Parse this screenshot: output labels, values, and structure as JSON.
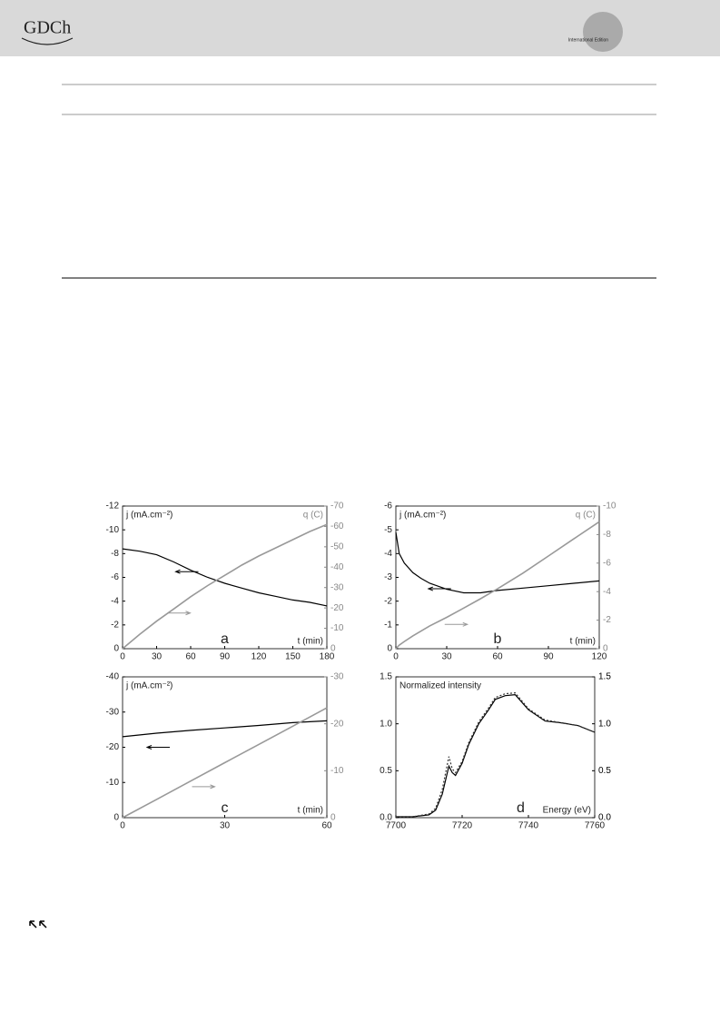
{
  "header": {
    "logo": "GDCh",
    "edition": "International Edition"
  },
  "chart_data": [
    {
      "type": "line",
      "panel_label": "a",
      "y_label": "j (mA.cm⁻²)",
      "y2_label": "q (C)",
      "x_label": "t (min)",
      "x": [
        0,
        15,
        30,
        45,
        60,
        75,
        90,
        105,
        120,
        135,
        150,
        165,
        180
      ],
      "xlim": [
        0,
        180
      ],
      "xticks": [
        0,
        30,
        60,
        90,
        120,
        150,
        180
      ],
      "ylim": [
        0,
        -12
      ],
      "yticks": [
        0,
        -2,
        -4,
        -6,
        -8,
        -10,
        -12
      ],
      "y2lim": [
        0,
        -70
      ],
      "y2ticks": [
        0,
        -10,
        -20,
        -30,
        -40,
        -50,
        -60,
        -70
      ],
      "series": [
        {
          "color": "#000000",
          "values": [
            -8.4,
            -8.2,
            -7.9,
            -7.3,
            -6.6,
            -6.0,
            -5.5,
            -5.1,
            -4.7,
            -4.4,
            -4.1,
            -3.9,
            -3.6
          ]
        },
        {
          "color": "#999999",
          "axis": "y2",
          "values": [
            0,
            -7,
            -13.5,
            -19.5,
            -25.5,
            -31,
            -36,
            -41,
            -45.5,
            -49.5,
            -53.5,
            -57.5,
            -61
          ]
        }
      ]
    },
    {
      "type": "line",
      "panel_label": "b",
      "y_label": "j (mA.cm⁻²)",
      "y2_label": "q (C)",
      "x_label": "t (min)",
      "x": [
        0,
        2,
        5,
        10,
        15,
        20,
        30,
        40,
        50,
        60,
        75,
        90,
        105,
        120
      ],
      "xlim": [
        0,
        120
      ],
      "xticks": [
        0,
        30,
        60,
        90,
        120
      ],
      "ylim": [
        0,
        -6
      ],
      "yticks": [
        0,
        -1,
        -2,
        -3,
        -4,
        -5,
        -6
      ],
      "y2lim": [
        0,
        -10
      ],
      "y2ticks": [
        0,
        -2,
        -4,
        -6,
        -8,
        -10
      ],
      "series": [
        {
          "color": "#000000",
          "values": [
            -4.9,
            -4.0,
            -3.6,
            -3.2,
            -2.95,
            -2.75,
            -2.5,
            -2.35,
            -2.35,
            -2.45,
            -2.55,
            -2.65,
            -2.75,
            -2.85
          ]
        },
        {
          "color": "#999999",
          "axis": "y2",
          "values": [
            0,
            -0.25,
            -0.5,
            -0.9,
            -1.25,
            -1.6,
            -2.2,
            -2.85,
            -3.5,
            -4.2,
            -5.3,
            -6.5,
            -7.7,
            -8.9
          ]
        }
      ]
    },
    {
      "type": "line",
      "panel_label": "c",
      "y_label": "j (mA.cm⁻²)",
      "x_label": "t (min)",
      "x": [
        0,
        10,
        20,
        30,
        40,
        50,
        60
      ],
      "xlim": [
        0,
        60
      ],
      "xticks": [
        0,
        30,
        60
      ],
      "ylim": [
        0,
        -40
      ],
      "yticks": [
        0,
        -10,
        -20,
        -30,
        -40
      ],
      "y2lim": [
        0,
        -30
      ],
      "y2ticks": [
        0,
        -10,
        -20,
        -30
      ],
      "series": [
        {
          "color": "#000000",
          "values": [
            -23,
            -24,
            -24.8,
            -25.5,
            -26.2,
            -27,
            -27.5
          ]
        },
        {
          "color": "#999999",
          "axis": "y2",
          "values": [
            0,
            -3.9,
            -7.8,
            -11.7,
            -15.6,
            -19.5,
            -23.4
          ]
        }
      ]
    },
    {
      "type": "line",
      "panel_label": "d",
      "y_label": "Normalized intensity",
      "x_label": "Energy (eV)",
      "x": [
        7700,
        7705,
        7710,
        7712,
        7714,
        7716,
        7717,
        7718,
        7720,
        7722,
        7725,
        7728,
        7730,
        7733,
        7736,
        7740,
        7745,
        7750,
        7755,
        7760
      ],
      "xlim": [
        7700,
        7760
      ],
      "xticks": [
        7700,
        7720,
        7740,
        7760
      ],
      "ylim": [
        0,
        1.5
      ],
      "yticks": [
        {
          "value": 0,
          "label": "0.0"
        },
        0.5,
        {
          "value": 1,
          "label": "1.0"
        },
        1.5
      ],
      "y2lim": [
        0,
        1.5
      ],
      "y2ticks": [
        {
          "value": 0,
          "label": "0.0"
        },
        0.5,
        {
          "value": 1,
          "label": "1.0"
        },
        1.5
      ],
      "series": [
        {
          "color": "#000000",
          "values": [
            0.01,
            0.01,
            0.03,
            0.08,
            0.25,
            0.55,
            0.48,
            0.45,
            0.58,
            0.78,
            1.0,
            1.15,
            1.26,
            1.3,
            1.31,
            1.15,
            1.03,
            1.01,
            0.98,
            0.91
          ]
        },
        {
          "color": "#333333",
          "dashed": true,
          "values": [
            0.01,
            0.01,
            0.04,
            0.1,
            0.3,
            0.65,
            0.52,
            0.48,
            0.6,
            0.8,
            1.02,
            1.17,
            1.28,
            1.32,
            1.33,
            1.16,
            1.04,
            1.01,
            0.98,
            0.91
          ]
        }
      ]
    }
  ]
}
